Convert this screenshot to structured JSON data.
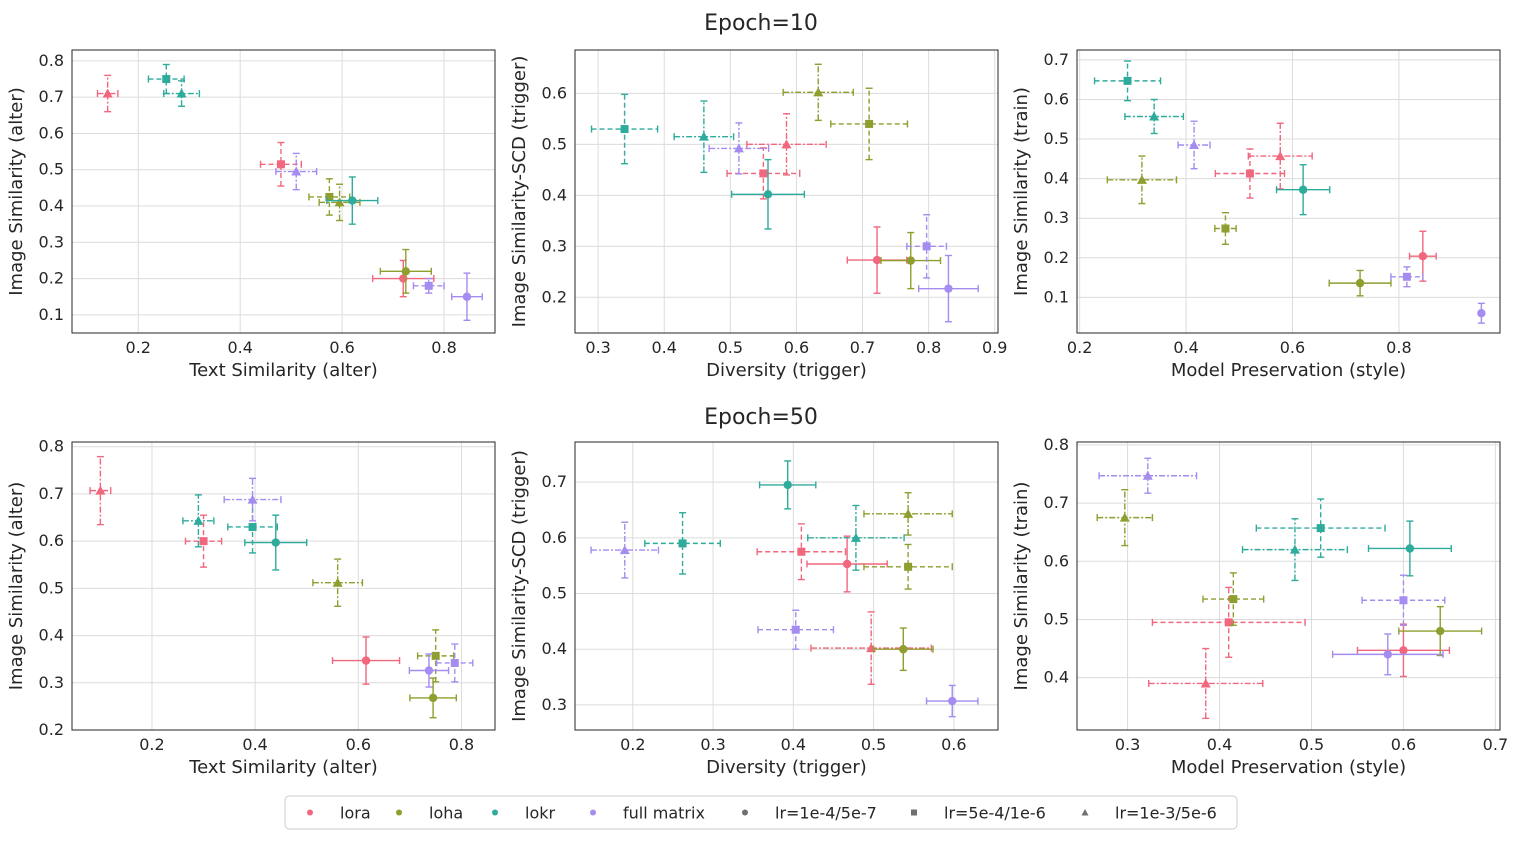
{
  "figure": {
    "row_titles": [
      "Epoch=10",
      "Epoch=50"
    ]
  },
  "legend": {
    "placement": "bottom-center",
    "entries": [
      {
        "label": "lora",
        "kind": "color",
        "color": "#f0677e"
      },
      {
        "label": "loha",
        "kind": "color",
        "color": "#8f9e2f"
      },
      {
        "label": "lokr",
        "kind": "color",
        "color": "#2fab9c"
      },
      {
        "label": "full matrix",
        "kind": "color",
        "color": "#a48cf0"
      },
      {
        "label": "lr=1e-4/5e-7",
        "kind": "marker",
        "marker": "circle"
      },
      {
        "label": "lr=5e-4/1e-6",
        "kind": "marker",
        "marker": "square"
      },
      {
        "label": "lr=1e-3/5e-6",
        "kind": "marker",
        "marker": "triangle"
      }
    ]
  },
  "chart_data": [
    {
      "type": "scatter",
      "row": 0,
      "col": 0,
      "xlabel": "Text Similarity (alter)",
      "ylabel": "Image Similarity (alter)",
      "xlim": [
        0.07,
        0.9
      ],
      "ylim": [
        0.05,
        0.83
      ],
      "xticks": [
        0.2,
        0.4,
        0.6,
        0.8
      ],
      "yticks": [
        0.1,
        0.2,
        0.3,
        0.4,
        0.5,
        0.6,
        0.7,
        0.8
      ],
      "grid": true,
      "points": [
        {
          "method": "lora",
          "lr": "lr=1e-4/5e-7",
          "x": 0.72,
          "y": 0.2,
          "xerr": 0.06,
          "yerr": 0.05
        },
        {
          "method": "lora",
          "lr": "lr=5e-4/1e-6",
          "x": 0.48,
          "y": 0.515,
          "xerr": 0.04,
          "yerr": 0.06
        },
        {
          "method": "lora",
          "lr": "lr=1e-3/5e-6",
          "x": 0.14,
          "y": 0.71,
          "xerr": 0.02,
          "yerr": 0.05
        },
        {
          "method": "loha",
          "lr": "lr=1e-4/5e-7",
          "x": 0.725,
          "y": 0.22,
          "xerr": 0.05,
          "yerr": 0.06
        },
        {
          "method": "loha",
          "lr": "lr=5e-4/1e-6",
          "x": 0.575,
          "y": 0.425,
          "xerr": 0.04,
          "yerr": 0.05
        },
        {
          "method": "loha",
          "lr": "lr=1e-3/5e-6",
          "x": 0.595,
          "y": 0.41,
          "xerr": 0.04,
          "yerr": 0.05
        },
        {
          "method": "lokr",
          "lr": "lr=1e-4/5e-7",
          "x": 0.62,
          "y": 0.415,
          "xerr": 0.05,
          "yerr": 0.065
        },
        {
          "method": "lokr",
          "lr": "lr=5e-4/1e-6",
          "x": 0.255,
          "y": 0.75,
          "xerr": 0.035,
          "yerr": 0.04
        },
        {
          "method": "lokr",
          "lr": "lr=1e-3/5e-6",
          "x": 0.285,
          "y": 0.71,
          "xerr": 0.035,
          "yerr": 0.035
        },
        {
          "method": "full matrix",
          "lr": "lr=1e-4/5e-7",
          "x": 0.845,
          "y": 0.15,
          "xerr": 0.03,
          "yerr": 0.065
        },
        {
          "method": "full matrix",
          "lr": "lr=5e-4/1e-6",
          "x": 0.77,
          "y": 0.18,
          "xerr": 0.03,
          "yerr": 0.02
        },
        {
          "method": "full matrix",
          "lr": "lr=1e-3/5e-6",
          "x": 0.51,
          "y": 0.495,
          "xerr": 0.04,
          "yerr": 0.05
        }
      ]
    },
    {
      "type": "scatter",
      "row": 0,
      "col": 1,
      "xlabel": "Diversity (trigger)",
      "ylabel": "Image Similarity-SCD (trigger)",
      "xlim": [
        0.265,
        0.905
      ],
      "ylim": [
        0.13,
        0.685
      ],
      "xticks": [
        0.3,
        0.4,
        0.5,
        0.6,
        0.7,
        0.8,
        0.9
      ],
      "yticks": [
        0.2,
        0.3,
        0.4,
        0.5,
        0.6
      ],
      "grid": true,
      "points": [
        {
          "method": "lora",
          "lr": "lr=1e-4/5e-7",
          "x": 0.722,
          "y": 0.273,
          "xerr": 0.045,
          "yerr": 0.065
        },
        {
          "method": "lora",
          "lr": "lr=5e-4/1e-6",
          "x": 0.55,
          "y": 0.443,
          "xerr": 0.055,
          "yerr": 0.05
        },
        {
          "method": "lora",
          "lr": "lr=1e-3/5e-6",
          "x": 0.585,
          "y": 0.5,
          "xerr": 0.06,
          "yerr": 0.06
        },
        {
          "method": "loha",
          "lr": "lr=1e-4/5e-7",
          "x": 0.773,
          "y": 0.272,
          "xerr": 0.045,
          "yerr": 0.055
        },
        {
          "method": "loha",
          "lr": "lr=5e-4/1e-6",
          "x": 0.71,
          "y": 0.54,
          "xerr": 0.058,
          "yerr": 0.07
        },
        {
          "method": "loha",
          "lr": "lr=1e-3/5e-6",
          "x": 0.633,
          "y": 0.602,
          "xerr": 0.053,
          "yerr": 0.055
        },
        {
          "method": "lokr",
          "lr": "lr=1e-4/5e-7",
          "x": 0.557,
          "y": 0.402,
          "xerr": 0.055,
          "yerr": 0.068
        },
        {
          "method": "lokr",
          "lr": "lr=5e-4/1e-6",
          "x": 0.34,
          "y": 0.53,
          "xerr": 0.05,
          "yerr": 0.068
        },
        {
          "method": "lokr",
          "lr": "lr=1e-3/5e-6",
          "x": 0.46,
          "y": 0.515,
          "xerr": 0.045,
          "yerr": 0.07
        },
        {
          "method": "full matrix",
          "lr": "lr=1e-4/5e-7",
          "x": 0.83,
          "y": 0.217,
          "xerr": 0.045,
          "yerr": 0.065
        },
        {
          "method": "full matrix",
          "lr": "lr=5e-4/1e-6",
          "x": 0.797,
          "y": 0.3,
          "xerr": 0.03,
          "yerr": 0.062
        },
        {
          "method": "full matrix",
          "lr": "lr=1e-3/5e-6",
          "x": 0.513,
          "y": 0.492,
          "xerr": 0.045,
          "yerr": 0.05
        }
      ]
    },
    {
      "type": "scatter",
      "row": 0,
      "col": 2,
      "xlabel": "Model Preservation (style)",
      "ylabel": "Image Similarity (train)",
      "xlim": [
        0.195,
        0.99
      ],
      "ylim": [
        0.01,
        0.725
      ],
      "xticks": [
        0.2,
        0.4,
        0.6,
        0.8
      ],
      "yticks": [
        0.1,
        0.2,
        0.3,
        0.4,
        0.5,
        0.6,
        0.7
      ],
      "grid": true,
      "points": [
        {
          "method": "lora",
          "lr": "lr=1e-4/5e-7",
          "x": 0.845,
          "y": 0.204,
          "xerr": 0.025,
          "yerr": 0.063
        },
        {
          "method": "lora",
          "lr": "lr=5e-4/1e-6",
          "x": 0.52,
          "y": 0.413,
          "xerr": 0.065,
          "yerr": 0.062
        },
        {
          "method": "lora",
          "lr": "lr=1e-3/5e-6",
          "x": 0.577,
          "y": 0.457,
          "xerr": 0.06,
          "yerr": 0.083
        },
        {
          "method": "loha",
          "lr": "lr=1e-4/5e-7",
          "x": 0.727,
          "y": 0.136,
          "xerr": 0.058,
          "yerr": 0.032
        },
        {
          "method": "loha",
          "lr": "lr=5e-4/1e-6",
          "x": 0.474,
          "y": 0.274,
          "xerr": 0.02,
          "yerr": 0.04
        },
        {
          "method": "loha",
          "lr": "lr=1e-3/5e-6",
          "x": 0.317,
          "y": 0.397,
          "xerr": 0.065,
          "yerr": 0.06
        },
        {
          "method": "lokr",
          "lr": "lr=1e-4/5e-7",
          "x": 0.62,
          "y": 0.372,
          "xerr": 0.05,
          "yerr": 0.063
        },
        {
          "method": "lokr",
          "lr": "lr=5e-4/1e-6",
          "x": 0.29,
          "y": 0.647,
          "xerr": 0.062,
          "yerr": 0.05
        },
        {
          "method": "lokr",
          "lr": "lr=1e-3/5e-6",
          "x": 0.34,
          "y": 0.557,
          "xerr": 0.055,
          "yerr": 0.043
        },
        {
          "method": "full matrix",
          "lr": "lr=1e-4/5e-7",
          "x": 0.955,
          "y": 0.06,
          "xerr": 0.0,
          "yerr": 0.025
        },
        {
          "method": "full matrix",
          "lr": "lr=5e-4/1e-6",
          "x": 0.815,
          "y": 0.152,
          "xerr": 0.03,
          "yerr": 0.025
        },
        {
          "method": "full matrix",
          "lr": "lr=1e-3/5e-6",
          "x": 0.415,
          "y": 0.485,
          "xerr": 0.03,
          "yerr": 0.06
        }
      ]
    },
    {
      "type": "scatter",
      "row": 1,
      "col": 0,
      "xlabel": "Text Similarity (alter)",
      "ylabel": "Image Similarity (alter)",
      "xlim": [
        0.045,
        0.865
      ],
      "ylim": [
        0.2,
        0.81
      ],
      "xticks": [
        0.2,
        0.4,
        0.6,
        0.8
      ],
      "yticks": [
        0.2,
        0.3,
        0.4,
        0.5,
        0.6,
        0.7,
        0.8
      ],
      "grid": true,
      "points": [
        {
          "method": "lora",
          "lr": "lr=1e-4/5e-7",
          "x": 0.615,
          "y": 0.347,
          "xerr": 0.065,
          "yerr": 0.05
        },
        {
          "method": "lora",
          "lr": "lr=5e-4/1e-6",
          "x": 0.3,
          "y": 0.6,
          "xerr": 0.035,
          "yerr": 0.055
        },
        {
          "method": "lora",
          "lr": "lr=1e-3/5e-6",
          "x": 0.1,
          "y": 0.707,
          "xerr": 0.02,
          "yerr": 0.072
        },
        {
          "method": "loha",
          "lr": "lr=1e-4/5e-7",
          "x": 0.745,
          "y": 0.268,
          "xerr": 0.045,
          "yerr": 0.042
        },
        {
          "method": "loha",
          "lr": "lr=5e-4/1e-6",
          "x": 0.75,
          "y": 0.357,
          "xerr": 0.035,
          "yerr": 0.055
        },
        {
          "method": "loha",
          "lr": "lr=1e-3/5e-6",
          "x": 0.56,
          "y": 0.512,
          "xerr": 0.048,
          "yerr": 0.05
        },
        {
          "method": "lokr",
          "lr": "lr=1e-4/5e-7",
          "x": 0.44,
          "y": 0.597,
          "xerr": 0.06,
          "yerr": 0.058
        },
        {
          "method": "lokr",
          "lr": "lr=5e-4/1e-6",
          "x": 0.395,
          "y": 0.63,
          "xerr": 0.048,
          "yerr": 0.055
        },
        {
          "method": "lokr",
          "lr": "lr=1e-3/5e-6",
          "x": 0.29,
          "y": 0.643,
          "xerr": 0.03,
          "yerr": 0.055
        },
        {
          "method": "full matrix",
          "lr": "lr=1e-4/5e-7",
          "x": 0.737,
          "y": 0.326,
          "xerr": 0.038,
          "yerr": 0.035
        },
        {
          "method": "full matrix",
          "lr": "lr=5e-4/1e-6",
          "x": 0.787,
          "y": 0.342,
          "xerr": 0.035,
          "yerr": 0.04
        },
        {
          "method": "full matrix",
          "lr": "lr=1e-3/5e-6",
          "x": 0.395,
          "y": 0.688,
          "xerr": 0.055,
          "yerr": 0.045
        }
      ]
    },
    {
      "type": "scatter",
      "row": 1,
      "col": 1,
      "xlabel": "Diversity (trigger)",
      "ylabel": "Image Similarity-SCD (trigger)",
      "xlim": [
        0.128,
        0.655
      ],
      "ylim": [
        0.255,
        0.772
      ],
      "xticks": [
        0.2,
        0.3,
        0.4,
        0.5,
        0.6
      ],
      "yticks": [
        0.3,
        0.4,
        0.5,
        0.6,
        0.7
      ],
      "grid": true,
      "points": [
        {
          "method": "lora",
          "lr": "lr=1e-4/5e-7",
          "x": 0.467,
          "y": 0.553,
          "xerr": 0.05,
          "yerr": 0.05
        },
        {
          "method": "lora",
          "lr": "lr=5e-4/1e-6",
          "x": 0.41,
          "y": 0.575,
          "xerr": 0.055,
          "yerr": 0.05
        },
        {
          "method": "lora",
          "lr": "lr=1e-3/5e-6",
          "x": 0.497,
          "y": 0.402,
          "xerr": 0.075,
          "yerr": 0.065
        },
        {
          "method": "loha",
          "lr": "lr=1e-4/5e-7",
          "x": 0.537,
          "y": 0.4,
          "xerr": 0.037,
          "yerr": 0.038
        },
        {
          "method": "loha",
          "lr": "lr=5e-4/1e-6",
          "x": 0.543,
          "y": 0.548,
          "xerr": 0.055,
          "yerr": 0.04
        },
        {
          "method": "loha",
          "lr": "lr=1e-3/5e-6",
          "x": 0.543,
          "y": 0.643,
          "xerr": 0.055,
          "yerr": 0.038
        },
        {
          "method": "lokr",
          "lr": "lr=1e-4/5e-7",
          "x": 0.393,
          "y": 0.695,
          "xerr": 0.035,
          "yerr": 0.043
        },
        {
          "method": "lokr",
          "lr": "lr=5e-4/1e-6",
          "x": 0.262,
          "y": 0.59,
          "xerr": 0.047,
          "yerr": 0.055
        },
        {
          "method": "lokr",
          "lr": "lr=1e-3/5e-6",
          "x": 0.478,
          "y": 0.6,
          "xerr": 0.06,
          "yerr": 0.058
        },
        {
          "method": "full matrix",
          "lr": "lr=1e-4/5e-7",
          "x": 0.598,
          "y": 0.307,
          "xerr": 0.032,
          "yerr": 0.028
        },
        {
          "method": "full matrix",
          "lr": "lr=5e-4/1e-6",
          "x": 0.403,
          "y": 0.435,
          "xerr": 0.047,
          "yerr": 0.035
        },
        {
          "method": "full matrix",
          "lr": "lr=1e-3/5e-6",
          "x": 0.19,
          "y": 0.578,
          "xerr": 0.042,
          "yerr": 0.05
        }
      ]
    },
    {
      "type": "scatter",
      "row": 1,
      "col": 2,
      "xlabel": "Model Preservation (style)",
      "ylabel": "Image Similarity (train)",
      "xlim": [
        0.245,
        0.705
      ],
      "ylim": [
        0.31,
        0.805
      ],
      "xticks": [
        0.3,
        0.4,
        0.5,
        0.6,
        0.7
      ],
      "yticks": [
        0.4,
        0.5,
        0.6,
        0.7,
        0.8
      ],
      "grid": true,
      "points": [
        {
          "method": "lora",
          "lr": "lr=1e-4/5e-7",
          "x": 0.6,
          "y": 0.447,
          "xerr": 0.05,
          "yerr": 0.045
        },
        {
          "method": "lora",
          "lr": "lr=5e-4/1e-6",
          "x": 0.41,
          "y": 0.495,
          "xerr": 0.083,
          "yerr": 0.06
        },
        {
          "method": "lora",
          "lr": "lr=1e-3/5e-6",
          "x": 0.385,
          "y": 0.39,
          "xerr": 0.062,
          "yerr": 0.06
        },
        {
          "method": "loha",
          "lr": "lr=1e-4/5e-7",
          "x": 0.64,
          "y": 0.48,
          "xerr": 0.045,
          "yerr": 0.042
        },
        {
          "method": "loha",
          "lr": "lr=5e-4/1e-6",
          "x": 0.415,
          "y": 0.535,
          "xerr": 0.033,
          "yerr": 0.045
        },
        {
          "method": "loha",
          "lr": "lr=1e-3/5e-6",
          "x": 0.297,
          "y": 0.675,
          "xerr": 0.03,
          "yerr": 0.048
        },
        {
          "method": "lokr",
          "lr": "lr=1e-4/5e-7",
          "x": 0.607,
          "y": 0.622,
          "xerr": 0.045,
          "yerr": 0.047
        },
        {
          "method": "lokr",
          "lr": "lr=5e-4/1e-6",
          "x": 0.51,
          "y": 0.657,
          "xerr": 0.07,
          "yerr": 0.05
        },
        {
          "method": "lokr",
          "lr": "lr=1e-3/5e-6",
          "x": 0.482,
          "y": 0.62,
          "xerr": 0.057,
          "yerr": 0.053
        },
        {
          "method": "full matrix",
          "lr": "lr=1e-4/5e-7",
          "x": 0.583,
          "y": 0.44,
          "xerr": 0.06,
          "yerr": 0.035
        },
        {
          "method": "full matrix",
          "lr": "lr=5e-4/1e-6",
          "x": 0.6,
          "y": 0.533,
          "xerr": 0.045,
          "yerr": 0.043
        },
        {
          "method": "full matrix",
          "lr": "lr=1e-3/5e-6",
          "x": 0.322,
          "y": 0.747,
          "xerr": 0.053,
          "yerr": 0.03
        }
      ]
    }
  ]
}
